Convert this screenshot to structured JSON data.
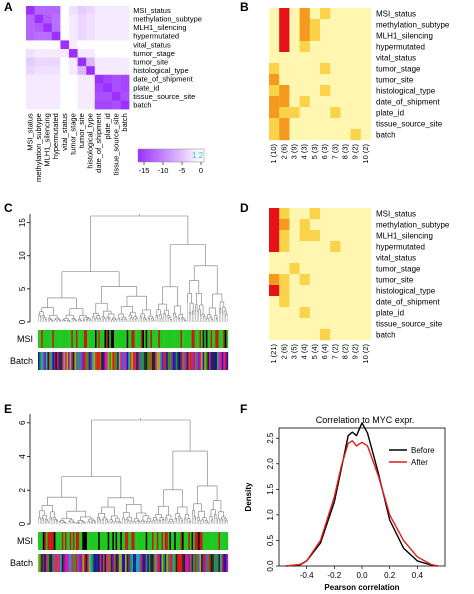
{
  "panel_letters": {
    "a": "A",
    "b": "B",
    "c": "C",
    "d": "D",
    "e": "E",
    "f": "F"
  },
  "variables": [
    "MSI_status",
    "methylation_subtype",
    "MLH1_silencing",
    "hypermutated",
    "vital_status",
    "tumor_stage",
    "tumor_site",
    "histological_type",
    "date_of_shipment",
    "plate_id",
    "tissue_source_site",
    "batch"
  ],
  "panel_a": {
    "colorbar_ticks": [
      "-15",
      "-10",
      "-5",
      "0"
    ],
    "colorbar_overlay": "1 2"
  },
  "panel_b": {
    "clusters": [
      "1 (10)",
      "2 (6)",
      "3 (9)",
      "4 (3)",
      "5 (3)",
      "6 (3)",
      "7 (3)",
      "8 (3)",
      "9 (2)",
      "10 (2)"
    ]
  },
  "panel_d": {
    "clusters": [
      "1 (21)",
      "2 (6)",
      "3 (5)",
      "4 (4)",
      "5 (4)",
      "6 (4)",
      "7 (2)",
      "8 (2)",
      "9 (2)",
      "10 (2)"
    ]
  },
  "panel_c": {
    "yticks": [
      "0",
      "5",
      "10",
      "15"
    ],
    "bar_labels": {
      "msi": "MSI",
      "batch": "Batch"
    }
  },
  "panel_e": {
    "yticks": [
      "0",
      "2",
      "4",
      "6"
    ],
    "bar_labels": {
      "msi": "MSI",
      "batch": "Batch"
    }
  },
  "colors": {
    "heat_red": "#e8111a",
    "heat_orange": "#f59a1f",
    "heat_yellow": "#fff6b0",
    "purple": "#9b30ff",
    "msi_green": "#1fc81f",
    "before_line": "#000000",
    "after_line": "#e81a1a"
  },
  "chart_data": {
    "type": "line",
    "title": "Correlation to MYC expr.",
    "xlabel": "Pearson correlation",
    "ylabel": "Density",
    "xlim": [
      -0.6,
      0.6
    ],
    "ylim": [
      0,
      2.7
    ],
    "xticks": [
      "-0.4",
      "-0.2",
      "0.0",
      "0.2",
      "0.4"
    ],
    "yticks": [
      "0.0",
      "0.5",
      "1.0",
      "1.5",
      "2.0",
      "2.5"
    ],
    "legend": "top-right",
    "x": [
      -0.55,
      -0.45,
      -0.4,
      -0.3,
      -0.2,
      -0.15,
      -0.1,
      -0.07,
      -0.04,
      0.0,
      0.04,
      0.08,
      0.12,
      0.2,
      0.3,
      0.4,
      0.5,
      0.55
    ],
    "series": [
      {
        "name": "Before",
        "values": [
          0.0,
          0.02,
          0.1,
          0.45,
          1.25,
          1.9,
          2.55,
          2.62,
          2.55,
          2.8,
          2.6,
          2.2,
          1.8,
          0.9,
          0.35,
          0.1,
          0.02,
          0.0
        ]
      },
      {
        "name": "After",
        "values": [
          0.0,
          0.03,
          0.1,
          0.5,
          1.35,
          1.95,
          2.4,
          2.45,
          2.35,
          2.42,
          2.35,
          2.05,
          1.75,
          1.0,
          0.5,
          0.18,
          0.03,
          0.0
        ]
      }
    ]
  }
}
